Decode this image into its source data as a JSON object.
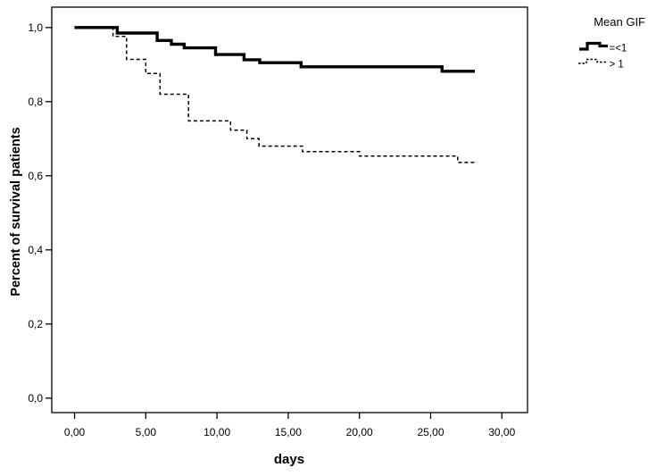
{
  "figure": {
    "background": "#ffffff",
    "line_color": "#000000",
    "frame_color": "#000000"
  },
  "legend": {
    "title": "Mean GIF",
    "entries": [
      {
        "label": "=<1",
        "style": "solid"
      },
      {
        "label": "> 1",
        "style": "dashed"
      }
    ]
  },
  "chart_data": {
    "type": "line",
    "subtype": "kaplan-meier-step",
    "title": "",
    "xlabel": "days",
    "ylabel": "Percent of survival patients",
    "grid": false,
    "legend_position": "outside-top-right",
    "xlim": [
      -1.6,
      31.8
    ],
    "ylim": [
      -0.039,
      1.055
    ],
    "x_ticks": [
      {
        "value": 0,
        "label": "0,00"
      },
      {
        "value": 5,
        "label": "5,00"
      },
      {
        "value": 10,
        "label": "10,00"
      },
      {
        "value": 15,
        "label": "15,00"
      },
      {
        "value": 20,
        "label": "20,00"
      },
      {
        "value": 25,
        "label": "25,00"
      },
      {
        "value": 30,
        "label": "30,00"
      }
    ],
    "y_ticks": [
      {
        "value": 0.0,
        "label": "0,0"
      },
      {
        "value": 0.2,
        "label": "0,2"
      },
      {
        "value": 0.4,
        "label": "0,4"
      },
      {
        "value": 0.6,
        "label": "0,6"
      },
      {
        "value": 0.8,
        "label": "0,8"
      },
      {
        "value": 1.0,
        "label": "1,0"
      }
    ],
    "series": [
      {
        "name": "=<1",
        "style": "solid",
        "color": "#000000",
        "stroke_width": 3.4,
        "steps": [
          [
            0,
            1.0
          ],
          [
            3,
            0.985
          ],
          [
            5.8,
            0.965
          ],
          [
            6.8,
            0.955
          ],
          [
            7.7,
            0.945
          ],
          [
            9.9,
            0.927
          ],
          [
            11.9,
            0.913
          ],
          [
            13,
            0.905
          ],
          [
            15.9,
            0.894
          ],
          [
            25.8,
            0.882
          ]
        ],
        "end_time": 28.1
      },
      {
        "name": "> 1",
        "style": "dashed",
        "color": "#000000",
        "stroke_width": 1.5,
        "steps": [
          [
            0,
            1.0
          ],
          [
            2.7,
            0.976
          ],
          [
            3.65,
            0.914
          ],
          [
            5,
            0.876
          ],
          [
            6,
            0.82
          ],
          [
            8,
            0.748
          ],
          [
            10.95,
            0.723
          ],
          [
            12.1,
            0.7
          ],
          [
            12.95,
            0.68
          ],
          [
            16,
            0.665
          ],
          [
            20,
            0.653
          ],
          [
            26.9,
            0.636
          ]
        ],
        "end_time": 28.1
      }
    ]
  }
}
